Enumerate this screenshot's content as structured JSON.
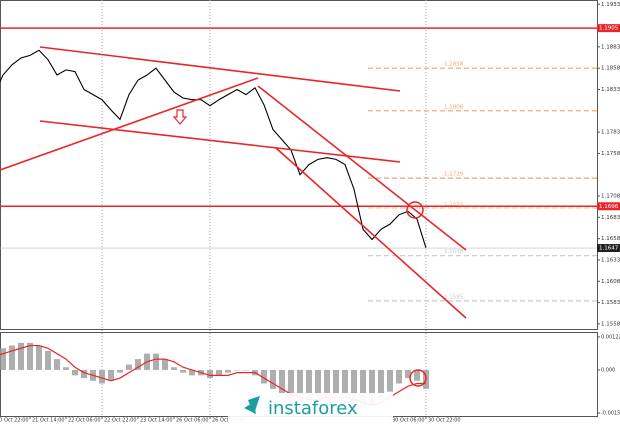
{
  "chart_data": [
    {
      "type": "line",
      "categories": [
        "20 Oct 22:00",
        null,
        null,
        null,
        "21 Oct 14:00",
        null,
        null,
        null,
        "22 Oct 06:00",
        null,
        null,
        null,
        "22 Oct 22:00",
        null,
        null,
        null,
        "23 Oct 14:00",
        null,
        null,
        null,
        "26 Oct 06:00",
        null,
        null,
        null,
        "26 Oct 22:00",
        null,
        null,
        null,
        null,
        null,
        null,
        null,
        null,
        null,
        null,
        null,
        null,
        null,
        null,
        null,
        null,
        null,
        null,
        null,
        "30 Oct 06:00",
        null,
        null,
        null,
        "30 Oct 22:00"
      ],
      "series": [
        {
          "color": "#000000",
          "values": [
            1.1827,
            1.185,
            1.1862,
            1.187,
            1.1873,
            1.1879,
            1.1868,
            1.185,
            1.1856,
            1.1854,
            1.1833,
            1.1827,
            1.1821,
            1.1809,
            1.1798,
            1.1827,
            1.1844,
            1.185,
            1.1858,
            1.1844,
            1.183,
            1.1823,
            1.1821,
            1.1821,
            1.1814,
            1.1821,
            1.1827,
            1.1833,
            1.1827,
            1.1835,
            1.1815,
            1.1786,
            1.1774,
            1.1762,
            1.1733,
            1.1745,
            1.1751,
            1.1753,
            1.1751,
            1.1745,
            1.1716,
            1.1669,
            1.1657,
            1.1669,
            1.1675,
            1.1686,
            1.169,
            1.1681,
            1.1647
          ]
        }
      ],
      "ylim": [
        1.1552,
        1.1938
      ],
      "yticks": [
        1.1933,
        1.1883,
        1.1858,
        1.1833,
        1.1783,
        1.1758,
        1.1708,
        1.1683,
        1.1658,
        1.1633,
        1.1608,
        1.1583,
        1.1558
      ],
      "hlines": [
        {
          "value": 1.1905,
          "color": "#e8262a"
        },
        {
          "value": 1.1696,
          "color": "#e8262a"
        }
      ],
      "last_price": 1.1647,
      "fib_levels": [
        {
          "value": 1.1858,
          "color": "#f4a46a"
        },
        {
          "value": 1.1808,
          "color": "#f4a46a"
        },
        {
          "value": 1.1729,
          "color": "#f4a46a"
        },
        {
          "value": 1.1694,
          "color": "#f7c89a"
        },
        {
          "value": 1.1638,
          "color": "#c8c8c8"
        },
        {
          "value": 1.1585,
          "color": "#c8c8c8"
        }
      ],
      "watermark": "instaforex"
    },
    {
      "type": "bar",
      "series": [
        {
          "color": "#9a9a9a",
          "values": [
            0.0006,
            0.0008,
            0.0009,
            0.001,
            0.001,
            0.0009,
            0.0007,
            0.0004,
            0.0001,
            -0.0002,
            -0.0003,
            -0.0004,
            -0.0005,
            -0.0004,
            -0.0001,
            0.0002,
            0.0004,
            0.0006,
            0.0006,
            0.0004,
            0.0001,
            -0.0001,
            -0.0002,
            -0.0002,
            -0.0003,
            -0.0002,
            -0.0001,
            0.0,
            0.0,
            -0.0002,
            -0.0005,
            -0.0007,
            -0.0009,
            -0.0011,
            -0.0012,
            -0.0011,
            -0.001,
            -0.001,
            -0.0009,
            -0.0009,
            -0.0012,
            -0.0014,
            -0.0013,
            -0.0011,
            -0.0008,
            -0.0005,
            -0.0003,
            -0.0004,
            -0.0007
          ]
        },
        {
          "color": "#e8262a",
          "line": true,
          "values": [
            0.0005,
            0.0006,
            0.0007,
            0.0008,
            0.0009,
            0.0009,
            0.0008,
            0.0006,
            0.0004,
            0.0001,
            -0.0001,
            -0.0002,
            -0.0003,
            -0.0004,
            -0.0003,
            -0.0001,
            0.0001,
            0.0003,
            0.0004,
            0.0004,
            0.0003,
            0.0001,
            0.0,
            -0.0001,
            -0.0002,
            -0.0002,
            -0.0002,
            -0.0001,
            -0.0001,
            -0.0001,
            -0.0003,
            -0.0005,
            -0.0007,
            -0.0009,
            -0.001,
            -0.0011,
            -0.0011,
            -0.001,
            -0.001,
            -0.001,
            -0.0011,
            -0.0012,
            -0.0013,
            -0.0012,
            -0.001,
            -0.0008,
            -0.0006,
            -0.0005,
            -0.0005
          ]
        }
      ],
      "ylim": [
        -0.0017,
        0.0014
      ],
      "yticks": [
        0.00122,
        {
          "value": 0,
          "label": "0.000"
        },
        -0.00159
      ]
    }
  ]
}
